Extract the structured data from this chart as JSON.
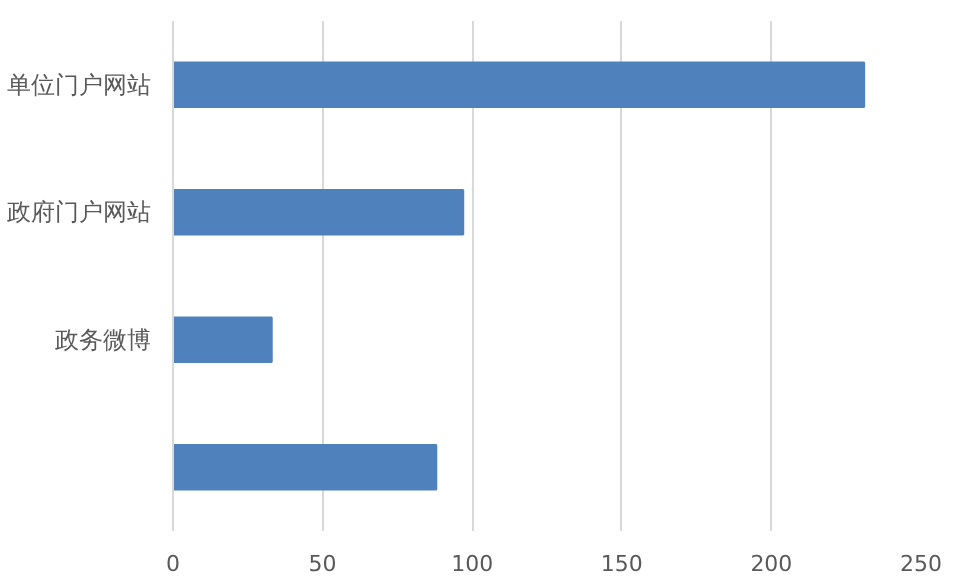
{
  "chart_data": {
    "type": "bar",
    "orientation": "horizontal",
    "categories": [
      "单位门户网站",
      "政府门户网站",
      "政务微博",
      null
    ],
    "values": [
      231,
      97,
      33,
      88
    ],
    "color": "#4f81bd",
    "xlim": [
      0,
      250
    ],
    "xticks": [
      0,
      50,
      100,
      150,
      200,
      250
    ],
    "grid": "x"
  }
}
